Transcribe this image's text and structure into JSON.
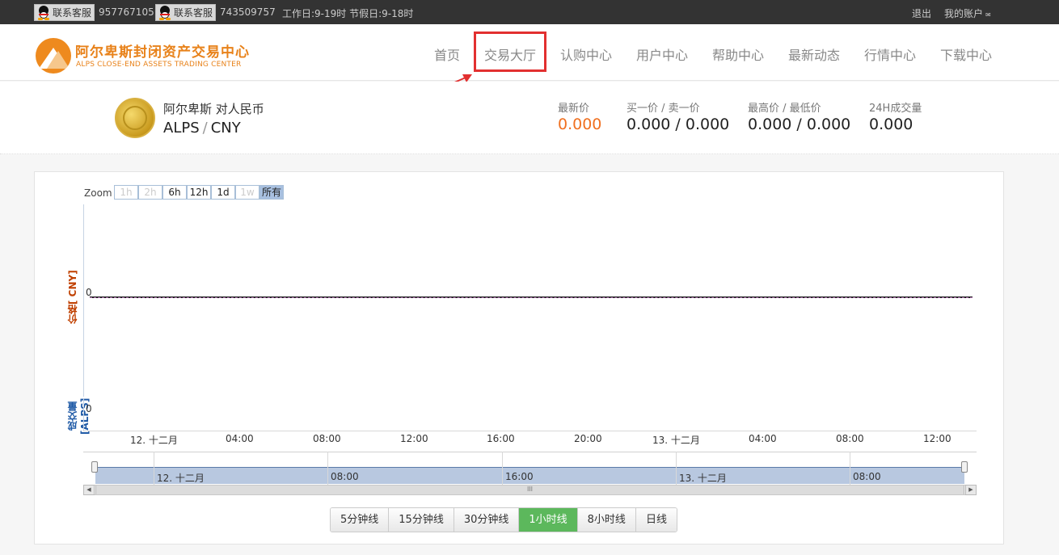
{
  "topbar": {
    "service_label": "联系客服",
    "qq1": "957767105",
    "qq2": "743509757",
    "hours": "工作日:9-19时 节假日:9-18时",
    "logout": "退出",
    "account": "我的账户"
  },
  "header": {
    "logo_cn": "阿尔卑斯封闭资产交易中心",
    "logo_en": "ALPS CLOSE-END ASSETS TRADING CENTER",
    "nav": [
      "首页",
      "交易大厅",
      "认购中心",
      "用户中心",
      "帮助中心",
      "最新动态",
      "行情中心",
      "下载中心"
    ]
  },
  "ticker": {
    "pair_cn": "阿尔卑斯 对人民币",
    "base": "ALPS",
    "sep": "/",
    "quote": "CNY",
    "latest_label": "最新价",
    "latest_value": "0.000",
    "bidask_label": "买一价 / 卖一价",
    "bidask_value": "0.000 / 0.000",
    "highlow_label": "最高价 / 最低价",
    "highlow_value": "0.000 / 0.000",
    "volume_label": "24H成交量",
    "volume_value": "0.000"
  },
  "chart": {
    "zoom_label": "Zoom",
    "zoom_buttons": [
      "1h",
      "2h",
      "6h",
      "12h",
      "1d",
      "1w",
      "所有"
    ],
    "price_axis_title": "价格[ CNY]",
    "volume_axis_title": "成交量[ALPS]",
    "price_zero": "0",
    "volume_zero": "0",
    "x_ticks": [
      "12. 十二月",
      "04:00",
      "08:00",
      "12:00",
      "16:00",
      "20:00",
      "13. 十二月",
      "04:00",
      "08:00",
      "12:00"
    ],
    "navigator_ticks": [
      "12. 十二月",
      "08:00",
      "16:00",
      "13. 十二月",
      "08:00"
    ],
    "scroll_grip": "III",
    "scroll_left": "◀",
    "scroll_right": "▶"
  },
  "chart_data": {
    "type": "line",
    "x": [
      "12. 十二月",
      "04:00",
      "08:00",
      "12:00",
      "16:00",
      "20:00",
      "13. 十二月",
      "04:00",
      "08:00",
      "12:00"
    ],
    "series": [
      {
        "values": [
          0,
          0,
          0,
          0,
          0,
          0,
          0,
          0,
          0,
          0
        ]
      },
      {
        "values": [
          0,
          0,
          0,
          0,
          0,
          0,
          0,
          0,
          0,
          0
        ]
      }
    ],
    "ylabel": "价格[ CNY]",
    "y2label": "成交量[ALPS]"
  },
  "periods": [
    "5分钟线",
    "15分钟线",
    "30分钟线",
    "1小时线",
    "8小时线",
    "日线"
  ]
}
